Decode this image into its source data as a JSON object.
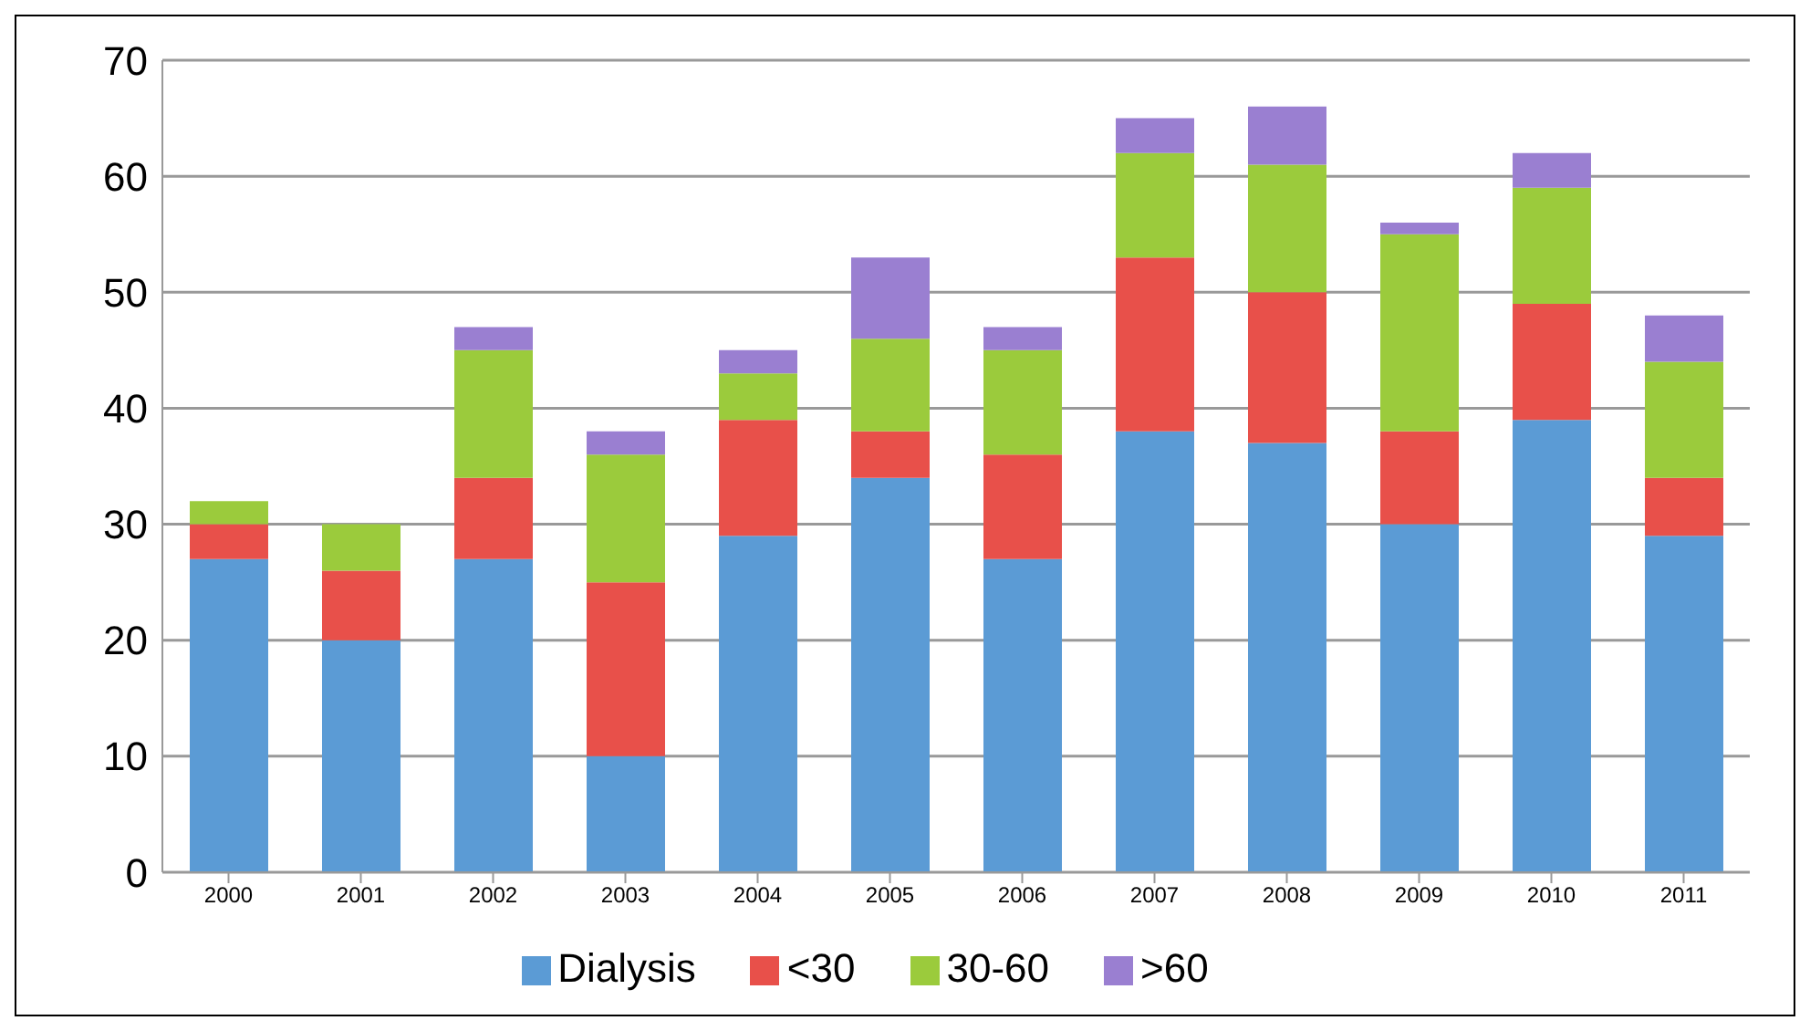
{
  "chart_data": {
    "type": "bar",
    "stacked": true,
    "categories": [
      "2000",
      "2001",
      "2002",
      "2003",
      "2004",
      "2005",
      "2006",
      "2007",
      "2008",
      "2009",
      "2010",
      "2011"
    ],
    "series": [
      {
        "name": "Dialysis",
        "color": "#5b9bd5",
        "values": [
          27,
          20,
          27,
          10,
          29,
          34,
          27,
          38,
          37,
          30,
          39,
          29
        ]
      },
      {
        "name": "<30",
        "color": "#e8504a",
        "values": [
          3,
          6,
          7,
          15,
          10,
          4,
          9,
          15,
          13,
          8,
          10,
          5
        ]
      },
      {
        "name": "30-60",
        "color": "#9bcb3c",
        "values": [
          2,
          4,
          11,
          11,
          4,
          8,
          9,
          9,
          11,
          17,
          10,
          10
        ]
      },
      {
        "name": ">60",
        "color": "#9a7fd1",
        "values": [
          0,
          0,
          2,
          2,
          2,
          7,
          2,
          3,
          5,
          1,
          3,
          4
        ]
      }
    ],
    "ylim": [
      0,
      70
    ],
    "yticks": [
      0,
      10,
      20,
      30,
      40,
      50,
      60,
      70
    ],
    "grid": "y",
    "legend": "bottom"
  }
}
